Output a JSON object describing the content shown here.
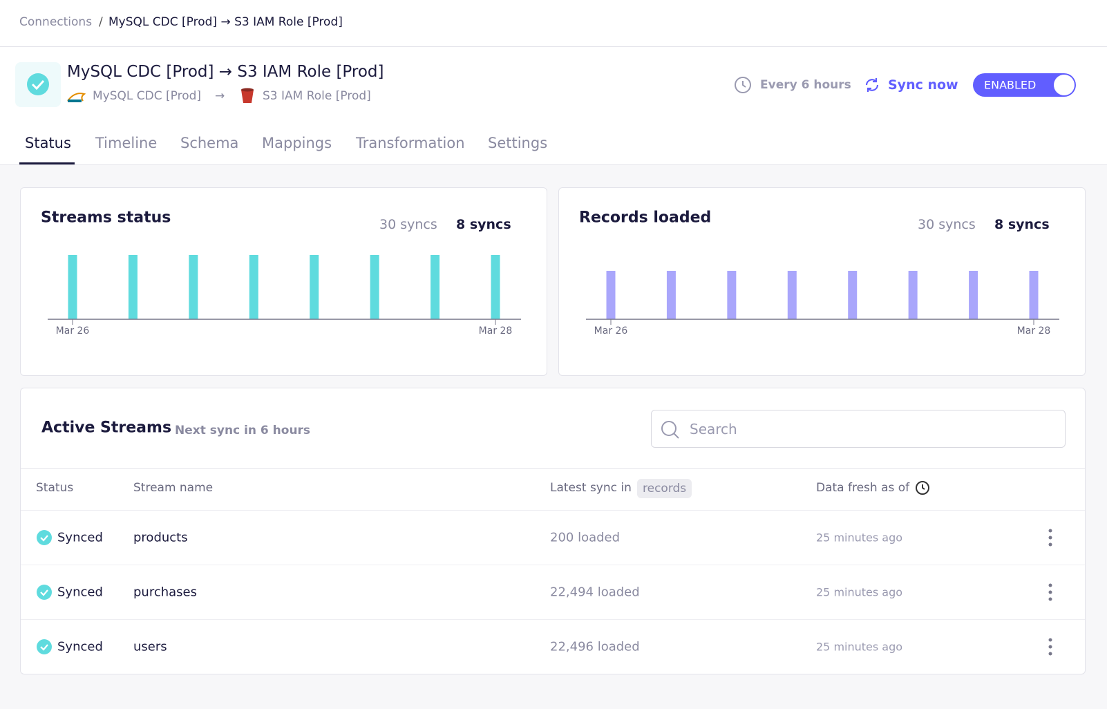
{
  "breadcrumb": {
    "root": "Connections",
    "current": "MySQL CDC [Prod] → S3 IAM Role [Prod]"
  },
  "header": {
    "title": "MySQL CDC [Prod] → S3 IAM Role [Prod]",
    "source": "MySQL CDC [Prod]",
    "destination": "S3 IAM Role [Prod]",
    "schedule": "Every 6 hours",
    "sync_button": "Sync now",
    "toggle": "ENABLED"
  },
  "tabs": [
    "Status",
    "Timeline",
    "Schema",
    "Mappings",
    "Transformation",
    "Settings"
  ],
  "chart_data": [
    {
      "type": "bar",
      "title": "Streams status",
      "range_options": [
        "30 syncs",
        "8 syncs"
      ],
      "categories": [
        "Mar 26",
        null,
        null,
        null,
        null,
        null,
        null,
        "Mar 28"
      ],
      "values": [
        3,
        3,
        3,
        3,
        3,
        3,
        3,
        3
      ],
      "color": "#5fdbde",
      "ylim": [
        0,
        3
      ]
    },
    {
      "type": "bar",
      "title": "Records loaded",
      "range_options": [
        "30 syncs",
        "8 syncs"
      ],
      "categories": [
        "Mar 26",
        null,
        null,
        null,
        null,
        null,
        null,
        "Mar 28"
      ],
      "values": [
        45190,
        45190,
        45190,
        45190,
        45190,
        45190,
        45190,
        45190
      ],
      "color": "#a9a6fb",
      "ylim": [
        0,
        60000
      ]
    }
  ],
  "streams": {
    "title": "Active Streams",
    "subtitle": "Next sync in 6 hours",
    "search_placeholder": "Search",
    "columns": [
      "Status",
      "Stream name",
      "Latest sync in",
      "Data fresh as of"
    ],
    "column_badge": "records",
    "rows": [
      {
        "status": "Synced",
        "name": "products",
        "latest": "200 loaded",
        "fresh": "25 minutes ago"
      },
      {
        "status": "Synced",
        "name": "purchases",
        "latest": "22,494 loaded",
        "fresh": "25 minutes ago"
      },
      {
        "status": "Synced",
        "name": "users",
        "latest": "22,496 loaded",
        "fresh": "25 minutes ago"
      }
    ]
  }
}
